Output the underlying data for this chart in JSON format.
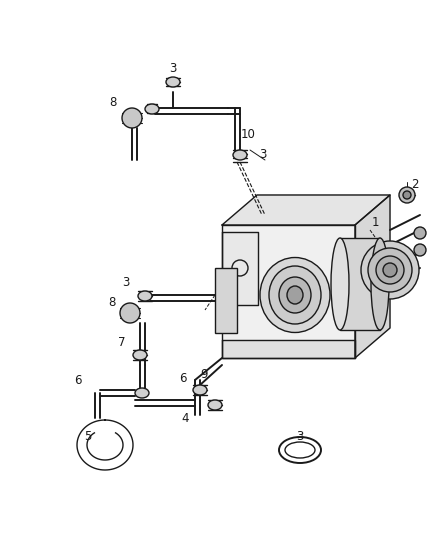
{
  "bg_color": "#ffffff",
  "fig_width": 4.38,
  "fig_height": 5.33,
  "dpi": 100,
  "line_color": "#1a1a1a",
  "label_color": "#1a1a1a",
  "label_fontsize": 8.5
}
